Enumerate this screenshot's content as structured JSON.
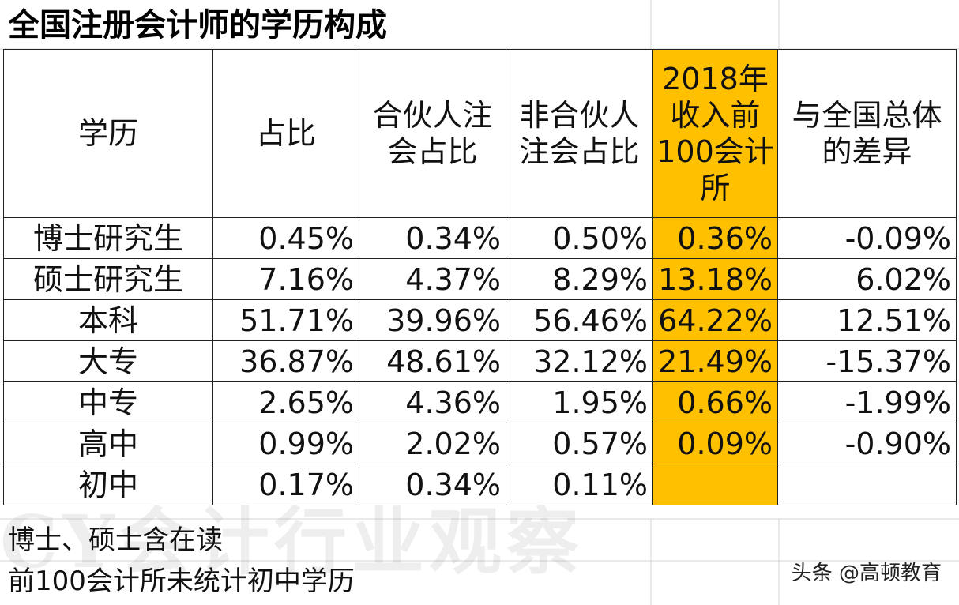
{
  "title": "全国注册会计师的学历构成",
  "headers": [
    "学历",
    "占比",
    "合伙人注会占比",
    "非合伙人注会占比",
    "2018年收入前100会计所",
    "与全国总体的差异"
  ],
  "rows": [
    {
      "edu": "博士研究生",
      "cells": [
        "0.45%",
        "0.34%",
        "0.50%",
        "0.36%",
        "-0.09%"
      ]
    },
    {
      "edu": "硕士研究生",
      "cells": [
        "7.16%",
        "4.37%",
        "8.29%",
        "13.18%",
        "6.02%"
      ]
    },
    {
      "edu": "本科",
      "cells": [
        "51.71%",
        "39.96%",
        "56.46%",
        "64.22%",
        "12.51%"
      ]
    },
    {
      "edu": "大专",
      "cells": [
        "36.87%",
        "48.61%",
        "32.12%",
        "21.49%",
        "-15.37%"
      ]
    },
    {
      "edu": "中专",
      "cells": [
        "2.65%",
        "4.36%",
        "1.95%",
        "0.66%",
        "-1.99%"
      ]
    },
    {
      "edu": "高中",
      "cells": [
        "0.99%",
        "2.02%",
        "0.57%",
        "0.09%",
        "-0.90%"
      ]
    },
    {
      "edu": "初中",
      "cells": [
        "0.17%",
        "0.34%",
        "0.11%",
        "",
        ""
      ]
    }
  ],
  "notes": [
    "博士、硕士含在读",
    "前100会计所未统计初中学历"
  ],
  "watermark": "CY会计行业观察",
  "source": "头条 @高顿教育",
  "colors": {
    "highlight": "#ffc000",
    "border": "#222222"
  }
}
